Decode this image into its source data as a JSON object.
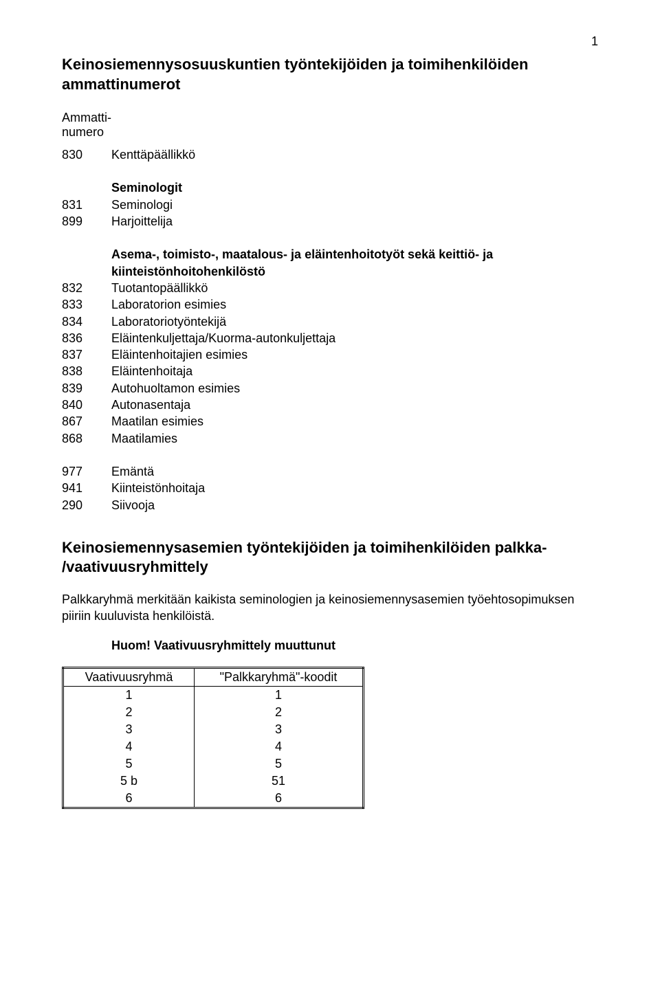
{
  "page_number": "1",
  "title": "Keinosiemennysosuuskuntien työntekijöiden ja toimihenkilöiden ammattinumerot",
  "label_ammattinumero": "Ammatti-\nnumero",
  "group_intro": {
    "code": "830",
    "name": "Kenttäpäällikkö"
  },
  "group1_header": "Seminologit",
  "group1": [
    {
      "code": "831",
      "name": "Seminologi"
    },
    {
      "code": "899",
      "name": "Harjoittelija"
    }
  ],
  "group2_header": "Asema-, toimisto-, maatalous- ja eläintenhoitotyöt sekä keittiö- ja kiinteistönhoitohenkilöstö",
  "group2": [
    {
      "code": "832",
      "name": "Tuotantopäällikkö"
    },
    {
      "code": "833",
      "name": "Laboratorion esimies"
    },
    {
      "code": "834",
      "name": "Laboratoriotyöntekijä"
    },
    {
      "code": "836",
      "name": "Eläintenkuljettaja/Kuorma-autonkuljettaja"
    },
    {
      "code": "837",
      "name": "Eläintenhoitajien esimies"
    },
    {
      "code": "838",
      "name": "Eläintenhoitaja"
    },
    {
      "code": "839",
      "name": "Autohuoltamon esimies"
    },
    {
      "code": "840",
      "name": "Autonasentaja"
    },
    {
      "code": "867",
      "name": "Maatilan esimies"
    },
    {
      "code": "868",
      "name": "Maatilamies"
    }
  ],
  "group3": [
    {
      "code": "977",
      "name": "Emäntä"
    },
    {
      "code": "941",
      "name": "Kiinteistönhoitaja"
    },
    {
      "code": "290",
      "name": "Siivooja"
    }
  ],
  "subtitle": "Keinosiemennysasemien työntekijöiden ja toimihenkilöiden palkka- /vaativuusryhmittely",
  "paragraph": "Palkkaryhmä merkitään kaikista seminologien ja keinosiemennysasemien työehtosopimuksen piiriin kuuluvista henkilöistä.",
  "note": "Huom! Vaativuusryhmittely muuttunut",
  "table": {
    "col1_header": "Vaativuusryhmä",
    "col2_header": "\"Palkkaryhmä\"-koodit",
    "rows": [
      {
        "a": "1",
        "b": "1"
      },
      {
        "a": "2",
        "b": "2"
      },
      {
        "a": "3",
        "b": "3"
      },
      {
        "a": "4",
        "b": "4"
      },
      {
        "a": "5",
        "b": "5"
      },
      {
        "a": "5 b",
        "b": "51"
      },
      {
        "a": "6",
        "b": "6"
      }
    ]
  }
}
